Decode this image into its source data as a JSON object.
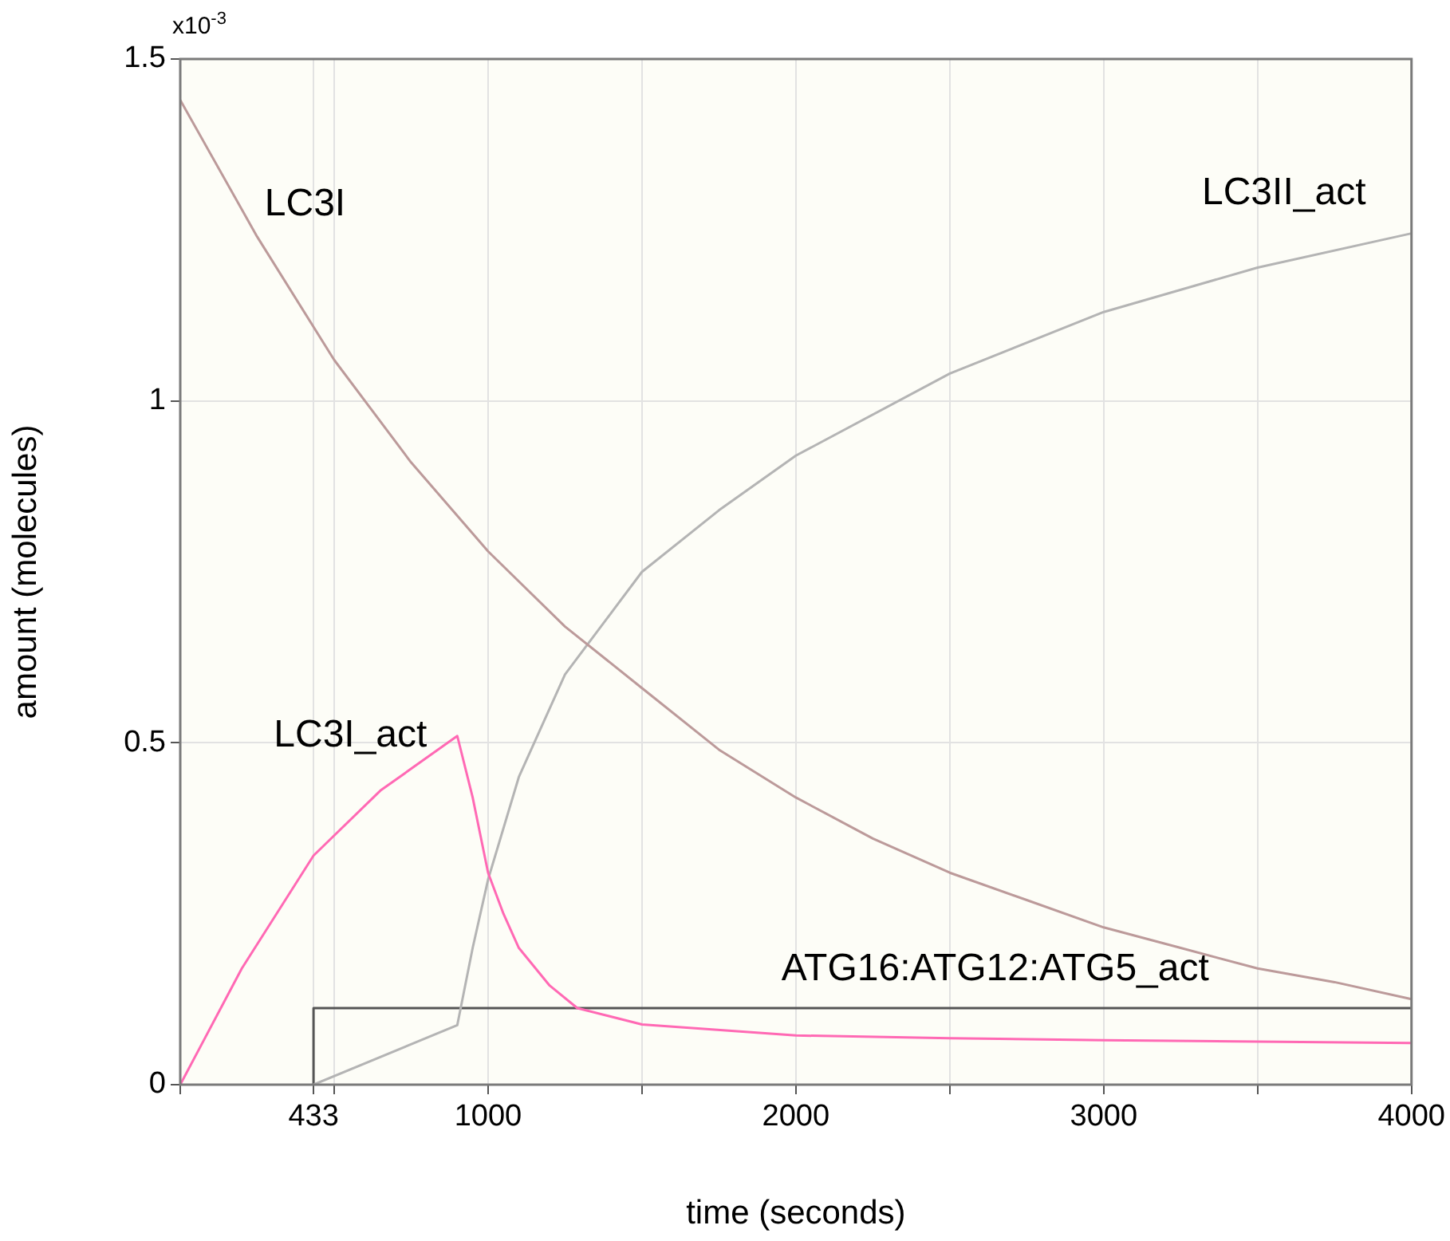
{
  "chart_data": {
    "type": "line",
    "xlabel": "time (seconds)",
    "ylabel": "amount (molecules)",
    "xlim": [
      0,
      4000
    ],
    "xticks": [
      {
        "value": 0,
        "label": null
      },
      433,
      {
        "value": 500,
        "label": null
      },
      1000,
      {
        "value": 1500,
        "label": null
      },
      2000,
      {
        "value": 2500,
        "label": null
      },
      3000,
      {
        "value": 3500,
        "label": null
      },
      4000
    ],
    "ylim": [
      0,
      1.5
    ],
    "yticks": [
      0,
      0.5,
      1,
      1.5
    ],
    "grid": true,
    "series": [
      {
        "name": "LC3I",
        "color": "#bc9a9a",
        "x": [
          0,
          250,
          500,
          750,
          1000,
          1250,
          1500,
          1750,
          2000,
          2250,
          2500,
          2750,
          3000,
          3250,
          3500,
          3750,
          4000
        ],
        "values": [
          1.44,
          1.24,
          1.06,
          0.91,
          0.78,
          0.67,
          0.58,
          0.49,
          0.42,
          0.36,
          0.31,
          0.27,
          0.23,
          0.2,
          0.17,
          0.15,
          0.125
        ]
      },
      {
        "name": "LC3I_act",
        "color": "#ff69b4",
        "x": [
          0,
          200,
          433,
          650,
          900,
          950,
          1000,
          1050,
          1100,
          1200,
          1290,
          1500,
          2000,
          2500,
          3000,
          3500,
          4000
        ],
        "values": [
          0,
          0.17,
          0.335,
          0.43,
          0.51,
          0.42,
          0.31,
          0.25,
          0.2,
          0.145,
          0.112,
          0.088,
          0.072,
          0.068,
          0.065,
          0.063,
          0.061
        ]
      },
      {
        "name": "LC3II_act",
        "color": "#b4b4b4",
        "x": [
          433,
          900,
          950,
          1000,
          1100,
          1250,
          1500,
          1750,
          2000,
          2500,
          3000,
          3500,
          4000
        ],
        "values": [
          0,
          0.087,
          0.2,
          0.3,
          0.45,
          0.6,
          0.75,
          0.84,
          0.92,
          1.04,
          1.13,
          1.195,
          1.245
        ]
      },
      {
        "name": "ATG16:ATG12:ATG5_act",
        "color": "#555555",
        "x": [
          433,
          433,
          4000
        ],
        "values": [
          0,
          0.112,
          0.112
        ]
      }
    ],
    "annotations": [
      "x10$^{-3}$"
    ]
  }
}
